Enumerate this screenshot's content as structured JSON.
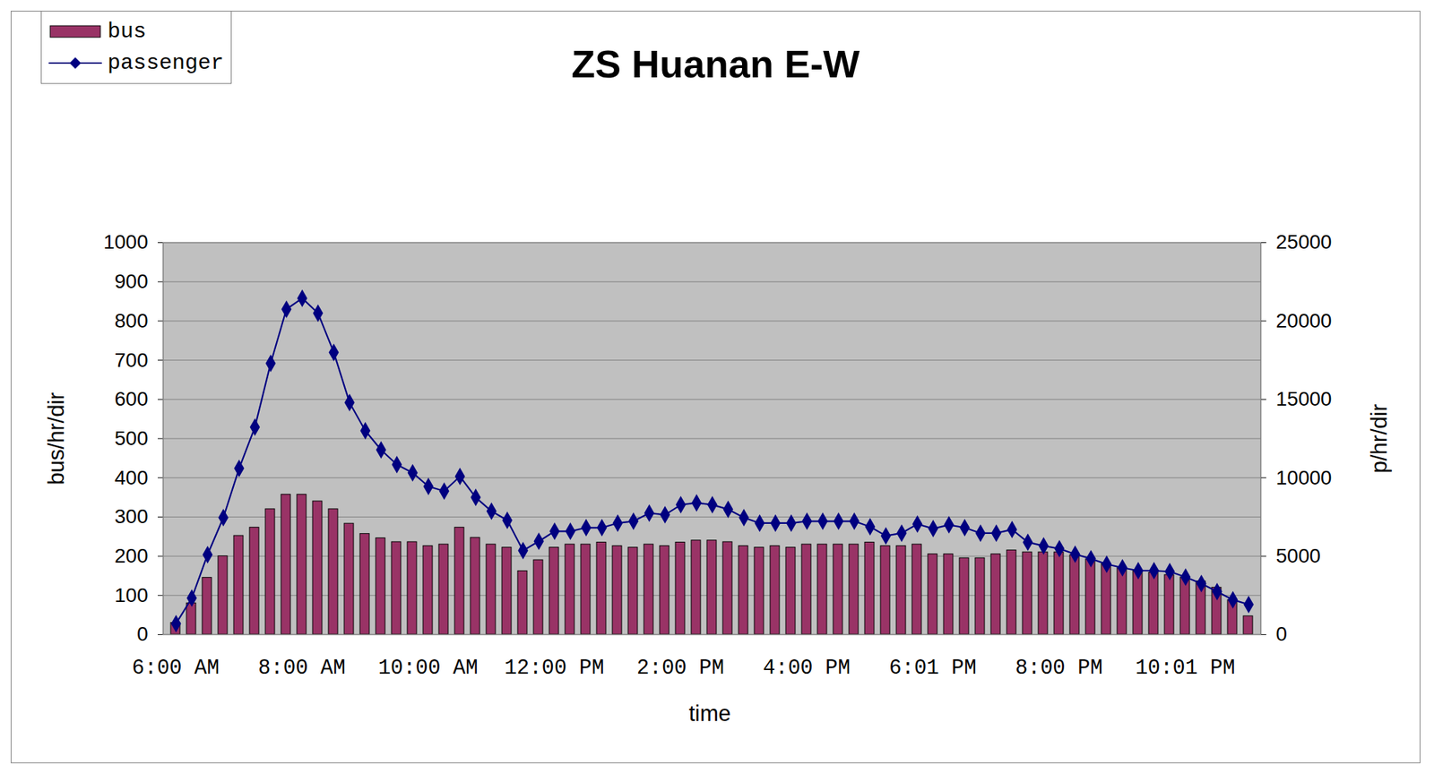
{
  "chart_data": {
    "type": "bar",
    "title": "ZS Huanan E-W",
    "x_label": "time",
    "y_label": "bus/hr/dir",
    "y2_label": "p/hr/dir",
    "categories": [
      "6:00 AM",
      null,
      null,
      null,
      null,
      null,
      null,
      null,
      "8:00 AM",
      null,
      null,
      null,
      null,
      null,
      null,
      null,
      "10:00 AM",
      null,
      null,
      null,
      null,
      null,
      null,
      null,
      "12:00 PM",
      null,
      null,
      null,
      null,
      null,
      null,
      null,
      "2:00 PM",
      null,
      null,
      null,
      null,
      null,
      null,
      null,
      "4:00 PM",
      null,
      null,
      null,
      null,
      null,
      null,
      null,
      "6:01 PM",
      null,
      null,
      null,
      null,
      null,
      null,
      null,
      "8:00 PM",
      null,
      null,
      null,
      null,
      null,
      null,
      null,
      "10:01 PM",
      null,
      null,
      null,
      null
    ],
    "series": [
      {
        "name": "bus",
        "type": "bar",
        "color": "#993366",
        "values": [
          30,
          80,
          145,
          200,
          252,
          273,
          320,
          357,
          357,
          340,
          320,
          283,
          257,
          246,
          236,
          236,
          226,
          230,
          273,
          247,
          230,
          222,
          162,
          190,
          222,
          230,
          230,
          235,
          226,
          222,
          230,
          226,
          235,
          240,
          240,
          236,
          226,
          222,
          226,
          222,
          230,
          230,
          230,
          230,
          235,
          226,
          226,
          230,
          205,
          205,
          195,
          195,
          205,
          215,
          210,
          210,
          210,
          203,
          192,
          180,
          170,
          162,
          158,
          152,
          146,
          136,
          120,
          88,
          47
        ]
      },
      {
        "name": "passenger",
        "type": "line",
        "color": "#000080",
        "marker": "diamond",
        "axis": "y2",
        "values": [
          700,
          2330,
          5100,
          7460,
          10600,
          13230,
          17300,
          20750,
          21450,
          20500,
          18000,
          14800,
          13000,
          11780,
          10840,
          10320,
          9450,
          9150,
          10090,
          8750,
          7870,
          7290,
          5360,
          5950,
          6590,
          6590,
          6820,
          6820,
          7110,
          7230,
          7750,
          7640,
          8280,
          8400,
          8280,
          7990,
          7460,
          7110,
          7110,
          7110,
          7230,
          7230,
          7230,
          7230,
          6880,
          6300,
          6470,
          7050,
          6760,
          7000,
          6820,
          6470,
          6470,
          6700,
          5890,
          5660,
          5480,
          5130,
          4840,
          4490,
          4260,
          4080,
          4080,
          4020,
          3670,
          3260,
          2740,
          2220,
          1920
        ]
      }
    ],
    "ylim": [
      0,
      1000
    ],
    "yticks": [
      0,
      100,
      200,
      300,
      400,
      500,
      600,
      700,
      800,
      900,
      1000
    ],
    "y2lim": [
      0,
      25000
    ],
    "y2ticks": [
      0,
      5000,
      10000,
      15000,
      20000,
      25000
    ],
    "grid": true,
    "legend": "top-left"
  }
}
